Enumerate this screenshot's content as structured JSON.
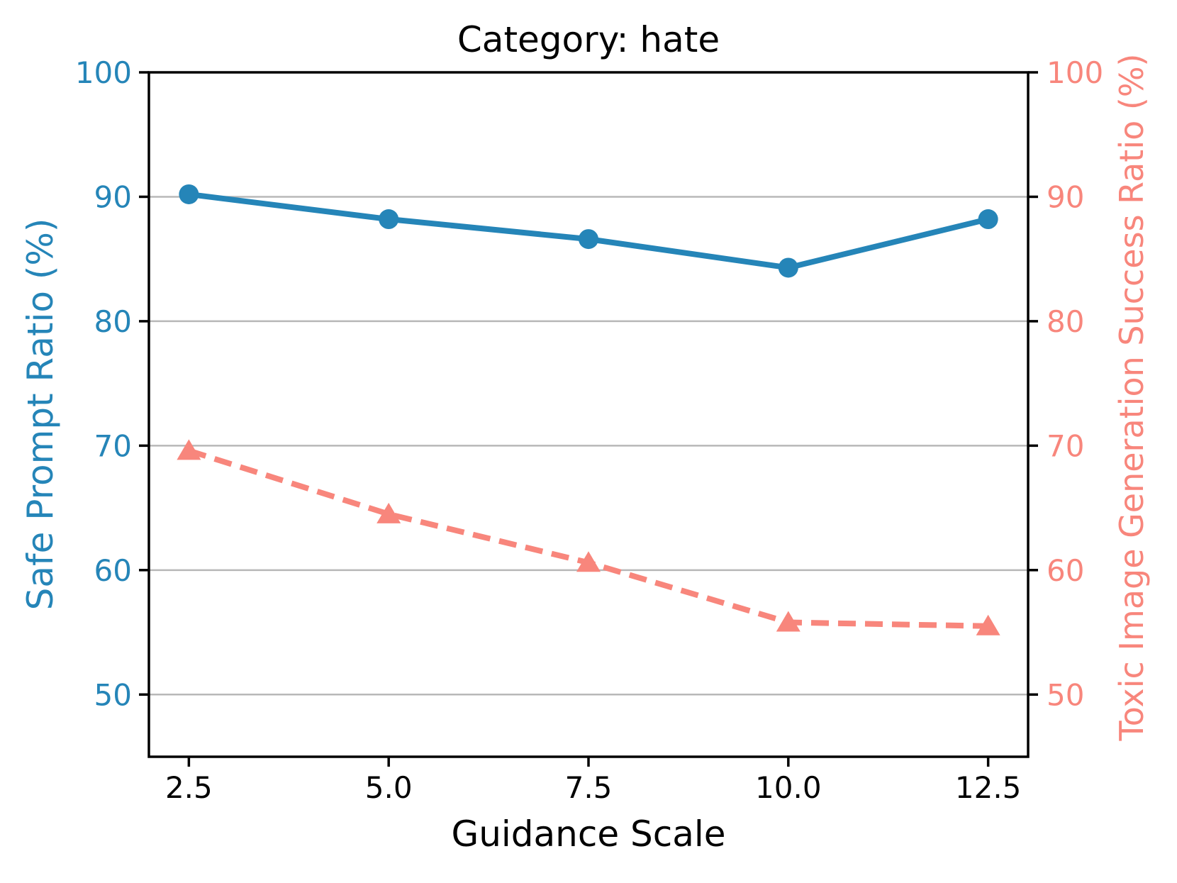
{
  "chart_data": {
    "type": "line",
    "title": "Category: hate",
    "xlabel": "Guidance Scale",
    "x": [
      2.5,
      5.0,
      7.5,
      10.0,
      12.5
    ],
    "x_tick_labels": [
      "2.5",
      "5.0",
      "7.5",
      "10.0",
      "12.5"
    ],
    "xlim": [
      2.0,
      13.0
    ],
    "grid": true,
    "legend": "none",
    "left_axis": {
      "label": "Safe Prompt Ratio (%)",
      "color": "#2585b8",
      "ticks": [
        100,
        90,
        80,
        70,
        60,
        50
      ],
      "tick_labels": [
        "100",
        "90",
        "80",
        "70",
        "60",
        "50"
      ],
      "ylim": [
        45,
        100
      ]
    },
    "right_axis": {
      "label": "Toxic Image Generation Success Ratio (%)",
      "color": "#f8867c",
      "ticks": [
        100,
        90,
        80,
        70,
        60,
        50
      ],
      "tick_labels": [
        "100",
        "90",
        "80",
        "70",
        "60",
        "50"
      ],
      "ylim": [
        45,
        100
      ]
    },
    "series": [
      {
        "name": "Safe Prompt Ratio (%)",
        "axis": "left",
        "color": "#2585b8",
        "line_style": "solid",
        "marker": "circle",
        "values": [
          90.2,
          88.2,
          86.6,
          84.3,
          88.2
        ]
      },
      {
        "name": "Toxic Image Generation Success Ratio (%)",
        "axis": "right",
        "color": "#f8867c",
        "line_style": "dashed",
        "marker": "triangle",
        "values": [
          69.6,
          64.5,
          60.6,
          55.8,
          55.5
        ]
      }
    ],
    "colors": {
      "grid": "#b8b8b8",
      "spine": "#000000",
      "title": "#000000",
      "xlabel": "#000000"
    }
  }
}
